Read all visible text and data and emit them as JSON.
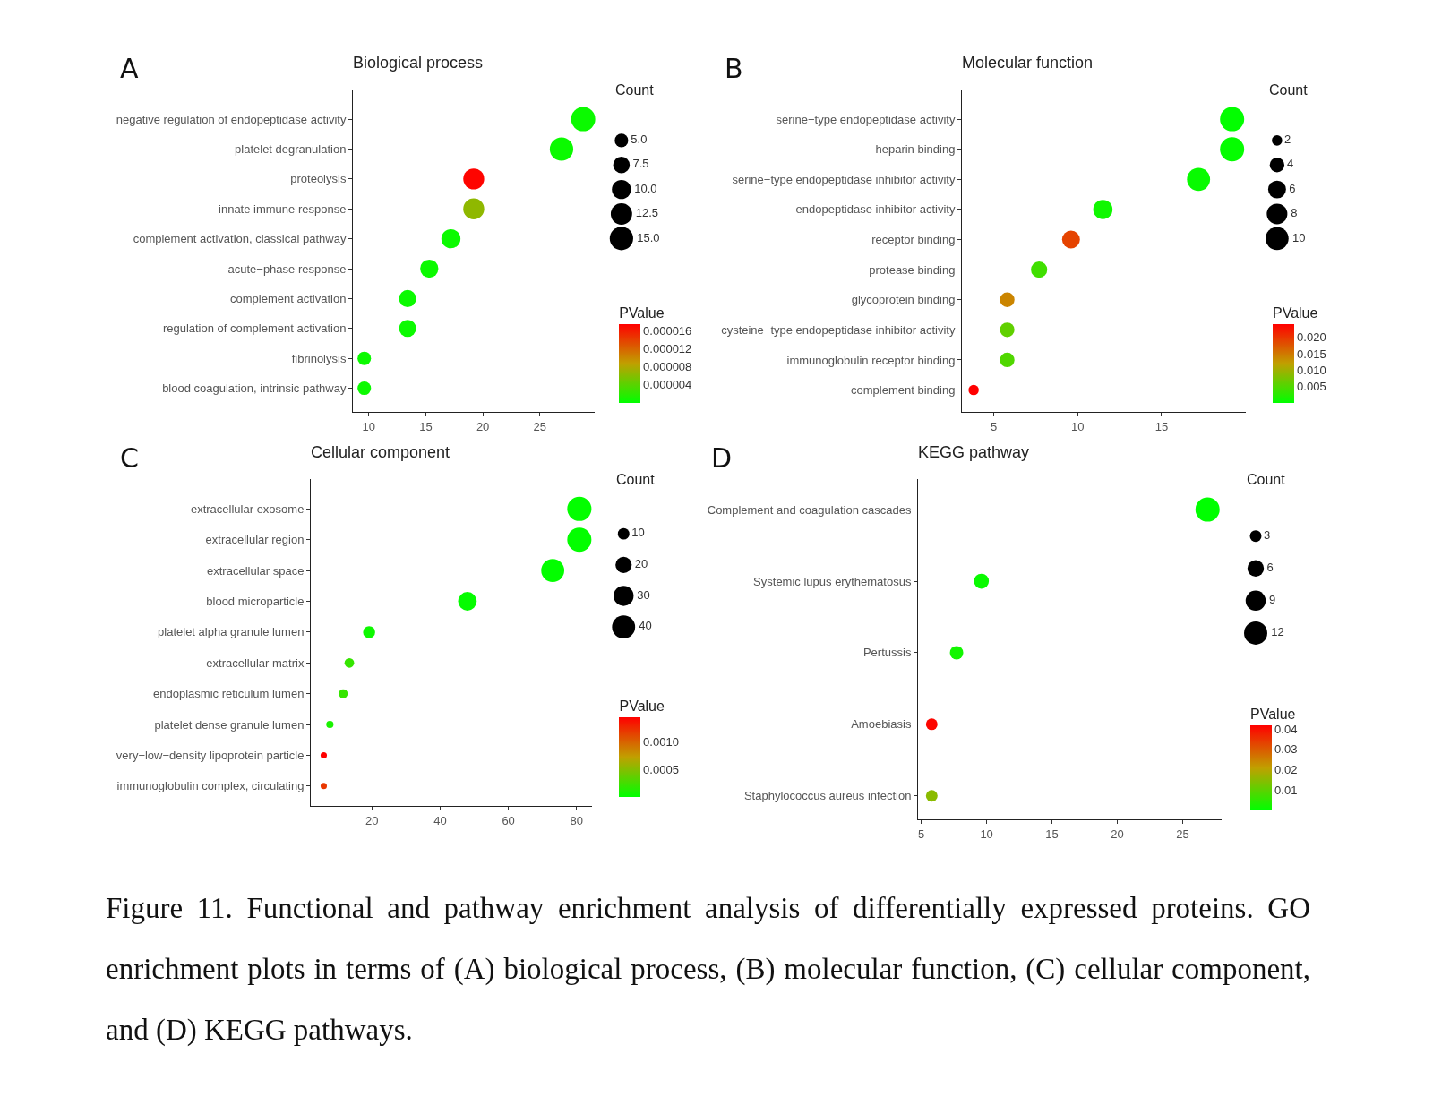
{
  "chart_data": [
    {
      "type": "bubble",
      "orientation": "horizontal",
      "title": "Biological process",
      "legend_title": "Count",
      "clabel": "PValue",
      "annotations": [
        "A"
      ],
      "categories": [
        "negative regulation of endopeptidase activity",
        "platelet degranulation",
        "proteolysis",
        "innate immune response",
        "complement activation, classical pathway",
        "acute−phase response",
        "complement activation",
        "regulation of complement activation",
        "fibrinolysis",
        "blood coagulation, intrinsic pathway"
      ],
      "values": [
        28.8,
        26.9,
        19.2,
        19.2,
        17.2,
        15.3,
        13.4,
        13.4,
        9.6,
        9.6
      ],
      "sizes": [
        16,
        15,
        12,
        12,
        10,
        9,
        8,
        8,
        5,
        5
      ],
      "cvalues": [
        5e-07,
        5e-07,
        1.72e-05,
        6.5e-06,
        5e-07,
        5e-07,
        5e-07,
        5e-07,
        5e-07,
        5e-07
      ],
      "size_legend": [
        {
          "value": 5,
          "label": "5.0"
        },
        {
          "value": 7.5,
          "label": "7.5"
        },
        {
          "value": 10,
          "label": "10.0"
        },
        {
          "value": 12.5,
          "label": "12.5"
        },
        {
          "value": 15,
          "label": "15.0"
        }
      ],
      "clim": [
        0,
        1.74e-05
      ],
      "cticks": [
        {
          "value": 4e-06,
          "label": "0.000004"
        },
        {
          "value": 8e-06,
          "label": "0.000008"
        },
        {
          "value": 1.2e-05,
          "label": "0.000012"
        },
        {
          "value": 1.6e-05,
          "label": "0.000016"
        }
      ],
      "xlim": [
        8.6,
        29.8
      ],
      "xticks": [
        10,
        15,
        20,
        25
      ]
    },
    {
      "type": "bubble",
      "orientation": "horizontal",
      "title": "Molecular function",
      "legend_title": "Count",
      "clabel": "PValue",
      "annotations": [
        "B"
      ],
      "categories": [
        "serine−type endopeptidase activity",
        "heparin binding",
        "serine−type endopeptidase inhibitor activity",
        "endopeptidase inhibitor activity",
        "receptor binding",
        "protease binding",
        "glycoprotein binding",
        "cysteine−type endopeptidase inhibitor activity",
        "immunoglobulin receptor binding",
        "complement binding"
      ],
      "values": [
        19.2,
        19.2,
        17.2,
        11.5,
        9.6,
        7.7,
        5.8,
        5.8,
        5.8,
        3.8
      ],
      "sizes": [
        11,
        11,
        10,
        7,
        6,
        5,
        4,
        4,
        4,
        2
      ],
      "cvalues": [
        0.0001,
        0.0003,
        0.0005,
        0.001,
        0.019,
        0.004,
        0.014,
        0.006,
        0.005,
        0.024
      ],
      "size_legend": [
        2,
        4,
        6,
        8,
        10
      ],
      "clim": [
        0,
        0.024
      ],
      "cticks": [
        {
          "value": 0.005,
          "label": "0.005"
        },
        {
          "value": 0.01,
          "label": "0.010"
        },
        {
          "value": 0.015,
          "label": "0.015"
        },
        {
          "value": 0.02,
          "label": "0.020"
        }
      ],
      "xlim": [
        3.1,
        20
      ],
      "xticks": [
        5,
        10,
        15
      ]
    },
    {
      "type": "bubble",
      "orientation": "horizontal",
      "title": "Cellular component",
      "legend_title": "Count",
      "clabel": "PValue",
      "annotations": [
        "C"
      ],
      "categories": [
        "extracellular exosome",
        "extracellular region",
        "extracellular space",
        "blood microparticle",
        "platelet alpha granule lumen",
        "extracellular matrix",
        "endoplasmic reticulum lumen",
        "platelet dense granule lumen",
        "very−low−density lipoprotein particle",
        "immunoglobulin complex, circulating"
      ],
      "values": [
        80.8,
        80.8,
        73,
        48,
        19.2,
        13.4,
        11.6,
        7.7,
        5.9,
        5.9
      ],
      "sizes": [
        44,
        44,
        40,
        26,
        11,
        7,
        6,
        4,
        3,
        3
      ],
      "cvalues": [
        1e-05,
        1e-05,
        1e-05,
        2e-05,
        5e-05,
        0.0002,
        0.0002,
        0.0001,
        0.00145,
        0.0012
      ],
      "size_legend": [
        10,
        20,
        30,
        40
      ],
      "clim": [
        0,
        0.00145
      ],
      "cticks": [
        {
          "value": 0.0005,
          "label": "0.0005"
        },
        {
          "value": 0.001,
          "label": "0.0010"
        }
      ],
      "xlim": [
        2.1,
        84.6
      ],
      "xticks": [
        20,
        40,
        60,
        80
      ]
    },
    {
      "type": "bubble",
      "orientation": "horizontal",
      "title": "KEGG pathway",
      "legend_title": "Count",
      "clabel": "PValue",
      "annotations": [
        "D",
        "Figure 11. Functional and pathway enrichment analysis of differentially expressed proteins. GO enrichment plots in terms of (A) biological process, (B) molecular function, (C) cellular component, and (D) KEGG pathways."
      ],
      "categories": [
        "Complement and coagulation cascades",
        "Systemic lupus erythematosus",
        "Pertussis",
        "Amoebiasis",
        "Staphylococcus aureus infection"
      ],
      "values": [
        26.9,
        9.6,
        7.7,
        5.8,
        5.8
      ],
      "sizes": [
        13,
        5,
        4,
        3,
        3
      ],
      "cvalues": [
        1e-05,
        0.001,
        0.002,
        0.041,
        0.015
      ],
      "size_legend": [
        3,
        6,
        9,
        12
      ],
      "clim": [
        0,
        0.0418
      ],
      "cticks": [
        {
          "value": 0.01,
          "label": "0.01"
        },
        {
          "value": 0.02,
          "label": "0.02"
        },
        {
          "value": 0.03,
          "label": "0.03"
        },
        {
          "value": 0.04,
          "label": "0.04"
        }
      ],
      "xlim": [
        4.75,
        28
      ],
      "xticks": [
        5,
        10,
        15,
        20,
        25
      ]
    }
  ]
}
